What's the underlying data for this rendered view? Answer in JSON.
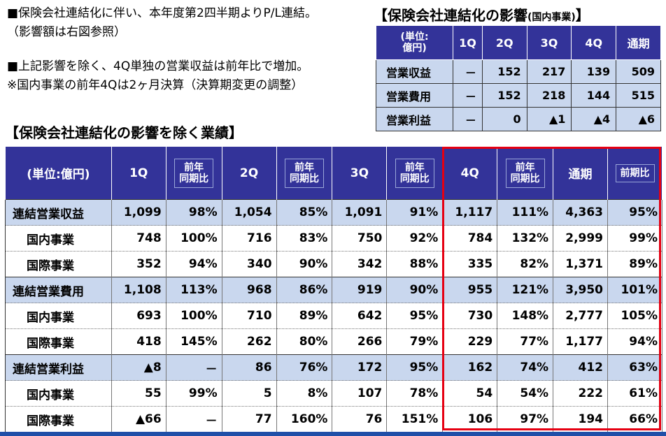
{
  "notes": [
    "■保険会社連結化に伴い、本年度第2四半期よりP/L連結。",
    "（影響額は右図参照）",
    "■上記影響を除く、4Q単独の営業収益は前年比で増加。",
    "※国内事業の前年4Qは2ヶ月決算（決算期変更の調整）"
  ],
  "impact": {
    "title": "【保険会社連結化の影響",
    "title_sub": "(国内事業)",
    "title_end": "】",
    "unit_line1": "(単位:",
    "unit_line2": "億円)",
    "headers": [
      "1Q",
      "2Q",
      "3Q",
      "4Q",
      "通期"
    ],
    "rows": [
      {
        "label": "営業収益",
        "values": [
          "－",
          "152",
          "217",
          "139",
          "509"
        ]
      },
      {
        "label": "営業費用",
        "values": [
          "－",
          "152",
          "218",
          "144",
          "515"
        ]
      },
      {
        "label": "営業利益",
        "values": [
          "－",
          "0",
          "▲1",
          "▲4",
          "▲6"
        ]
      }
    ]
  },
  "main": {
    "title": "【保険会社連結化の影響を除く業績】",
    "unit": "(単位:億円)",
    "headers": [
      "1Q",
      "2Q",
      "3Q",
      "4Q",
      "通期"
    ],
    "ratio_line1": "前年",
    "ratio_line2": "同期比",
    "ratio_full": "前期比",
    "rows": [
      {
        "label": "連結営業収益",
        "group": true,
        "values": [
          "1,099",
          "98%",
          "1,054",
          "85%",
          "1,091",
          "91%",
          "1,117",
          "111%",
          "4,363",
          "95%"
        ]
      },
      {
        "label": "国内事業",
        "group": false,
        "values": [
          "748",
          "100%",
          "716",
          "83%",
          "750",
          "92%",
          "784",
          "132%",
          "2,999",
          "99%"
        ]
      },
      {
        "label": "国際事業",
        "group": false,
        "values": [
          "352",
          "94%",
          "340",
          "90%",
          "342",
          "88%",
          "335",
          "82%",
          "1,371",
          "89%"
        ]
      },
      {
        "label": "連結営業費用",
        "group": true,
        "values": [
          "1,108",
          "113%",
          "968",
          "86%",
          "919",
          "90%",
          "955",
          "121%",
          "3,950",
          "101%"
        ]
      },
      {
        "label": "国内事業",
        "group": false,
        "values": [
          "693",
          "100%",
          "710",
          "89%",
          "642",
          "95%",
          "730",
          "148%",
          "2,777",
          "105%"
        ]
      },
      {
        "label": "国際事業",
        "group": false,
        "values": [
          "418",
          "145%",
          "262",
          "80%",
          "266",
          "79%",
          "229",
          "77%",
          "1,177",
          "94%"
        ]
      },
      {
        "label": "連結営業利益",
        "group": true,
        "values": [
          "▲8",
          "－",
          "86",
          "76%",
          "172",
          "95%",
          "162",
          "74%",
          "412",
          "63%"
        ]
      },
      {
        "label": "国内事業",
        "group": false,
        "values": [
          "55",
          "99%",
          "5",
          "8%",
          "107",
          "78%",
          "54",
          "54%",
          "222",
          "61%"
        ]
      },
      {
        "label": "国際事業",
        "group": false,
        "values": [
          "▲66",
          "－",
          "77",
          "160%",
          "76",
          "151%",
          "106",
          "97%",
          "194",
          "66%"
        ]
      }
    ]
  },
  "colors": {
    "header_bg": "#333399",
    "group_bg": "#c9d7ee",
    "highlight_border": "#e60012"
  }
}
